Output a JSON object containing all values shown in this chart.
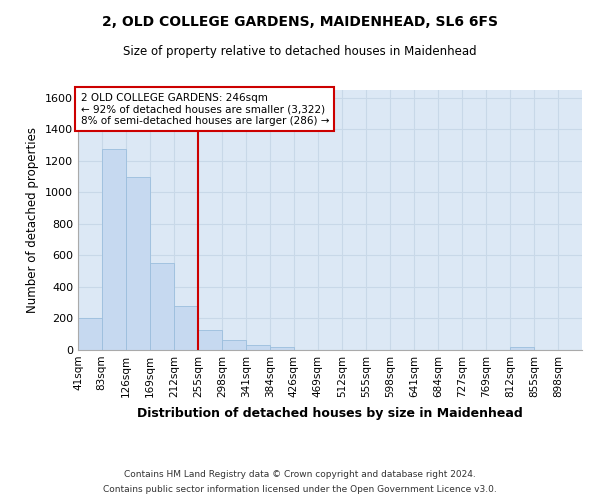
{
  "title1": "2, OLD COLLEGE GARDENS, MAIDENHEAD, SL6 6FS",
  "title2": "Size of property relative to detached houses in Maidenhead",
  "xlabel": "Distribution of detached houses by size in Maidenhead",
  "ylabel": "Number of detached properties",
  "footnote1": "Contains HM Land Registry data © Crown copyright and database right 2024.",
  "footnote2": "Contains public sector information licensed under the Open Government Licence v3.0.",
  "annotation_line1": "2 OLD COLLEGE GARDENS: 246sqm",
  "annotation_line2": "← 92% of detached houses are smaller (3,322)",
  "annotation_line3": "8% of semi-detached houses are larger (286) →",
  "bar_color": "#c6d9f0",
  "bar_edge_color": "#9bbedd",
  "grid_color": "#c8d8e8",
  "bg_color": "#dce8f5",
  "vline_color": "#cc0000",
  "vline_x": 255,
  "categories": [
    "41sqm",
    "83sqm",
    "126sqm",
    "169sqm",
    "212sqm",
    "255sqm",
    "298sqm",
    "341sqm",
    "384sqm",
    "426sqm",
    "469sqm",
    "512sqm",
    "555sqm",
    "598sqm",
    "641sqm",
    "684sqm",
    "727sqm",
    "769sqm",
    "812sqm",
    "855sqm",
    "898sqm"
  ],
  "bin_edges": [
    41,
    83,
    126,
    169,
    212,
    255,
    298,
    341,
    384,
    426,
    469,
    512,
    555,
    598,
    641,
    684,
    727,
    769,
    812,
    855,
    898,
    941
  ],
  "values": [
    200,
    1275,
    1100,
    550,
    280,
    130,
    65,
    30,
    20,
    0,
    0,
    0,
    0,
    0,
    0,
    0,
    0,
    0,
    20,
    0,
    0
  ],
  "ylim": [
    0,
    1650
  ],
  "yticks": [
    0,
    200,
    400,
    600,
    800,
    1000,
    1200,
    1400,
    1600
  ]
}
